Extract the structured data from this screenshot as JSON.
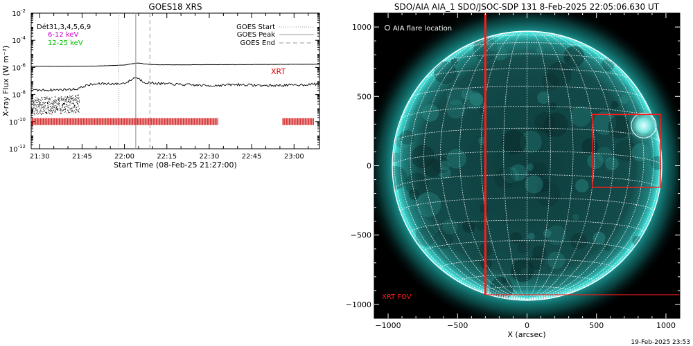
{
  "chart_data": [
    {
      "type": "line",
      "title": "GOES18 XRS",
      "xlabel": "Start Time (08-Feb-25 21:27:00)",
      "ylabel": "X-ray Flux (W m⁻²)",
      "y_scale": "log",
      "ylim": [
        1e-12,
        0.01
      ],
      "xlim": [
        "21:27",
        "23:09"
      ],
      "x_ticks": [
        "21:30",
        "21:45",
        "22:00",
        "22:15",
        "22:30",
        "22:45",
        "23:00"
      ],
      "y_ticks": [
        {
          "value": 0.01,
          "base": "10",
          "exp": "-2"
        },
        {
          "value": 0.0001,
          "base": "10",
          "exp": "-4"
        },
        {
          "value": 1e-06,
          "base": "10",
          "exp": "-6"
        },
        {
          "value": 1e-08,
          "base": "10",
          "exp": "-8"
        },
        {
          "value": 1e-10,
          "base": "10",
          "exp": "-10"
        },
        {
          "value": 1e-12,
          "base": "10",
          "exp": "-12"
        }
      ],
      "legend_left": [
        {
          "label": "Dét31,3,4,5,6,9",
          "color": "#000000"
        },
        {
          "label": "6-12 keV",
          "color": "#d000d0"
        },
        {
          "label": "12-25 keV",
          "color": "#00c000"
        }
      ],
      "legend_right": [
        {
          "label": "GOES Start",
          "style": "dotted"
        },
        {
          "label": "GOES Peak",
          "style": "solid"
        },
        {
          "label": "GOES End",
          "style": "dashed"
        }
      ],
      "goes_events": {
        "start": "21:58",
        "peak": "22:04",
        "end": "22:09"
      },
      "annotation": {
        "text": "XRT",
        "color": "#dd0000"
      },
      "grid": false,
      "series": [
        {
          "color": "#000000",
          "x": [
            "21:27",
            "21:40",
            "21:50",
            "22:00",
            "22:03",
            "22:05",
            "22:07",
            "22:10",
            "22:20",
            "22:30",
            "22:40",
            "22:50",
            "23:00",
            "23:09"
          ],
          "values": [
            1.2e-06,
            1.2e-06,
            1.25e-06,
            1.5e-06,
            1.9e-06,
            2.1e-06,
            1.8e-06,
            1.6e-06,
            1.55e-06,
            1.6e-06,
            1.6e-06,
            1.65e-06,
            1.7e-06,
            1.7e-06
          ]
        },
        {
          "color": "#000000",
          "x": [
            "21:27",
            "21:35",
            "21:43",
            "21:47",
            "21:52",
            "21:58",
            "22:01",
            "22:04",
            "22:07",
            "22:12",
            "22:20",
            "22:30",
            "22:40",
            "22:50",
            "23:00",
            "23:09"
          ],
          "values": [
            2e-08,
            2.2e-08,
            2.5e-08,
            5e-08,
            6.5e-08,
            6e-08,
            8e-08,
            2e-07,
            8e-08,
            6.5e-08,
            5.5e-08,
            4.5e-08,
            5.5e-08,
            4.5e-08,
            5e-08,
            6e-08
          ]
        }
      ],
      "xrt_coverage": [
        [
          "21:27",
          "22:33"
        ],
        [
          "22:56",
          "23:07"
        ]
      ]
    },
    {
      "type": "image",
      "title": "SDO/AIA AIA_1 SDO/JSOC-SDP 131  8-Feb-2025 22:05:06.630 UT",
      "xlabel": "X (arcsec)",
      "ylabel": "",
      "xlim": [
        -1100,
        1100
      ],
      "ylim": [
        -1100,
        1100
      ],
      "x_ticks": [
        "−1000",
        "−500",
        "0",
        "500",
        "1000"
      ],
      "y_ticks": [
        "1000",
        "500",
        "0",
        "−500",
        "−1000"
      ],
      "legend_text": "AIA flare location",
      "fov_label": "XRT FOV",
      "fov_color": "#ff1a1a",
      "disk_color": "#1fb4b0",
      "solar_radius_arcsec": 970,
      "flare_location": {
        "x": 840,
        "y": 290
      },
      "xrt_fov": [
        -300,
        1100,
        -930,
        1100
      ],
      "zoom_box": [
        470,
        960,
        -155,
        370
      ]
    }
  ],
  "footer": {
    "timestamp": "19-Feb-2025 23:53"
  }
}
